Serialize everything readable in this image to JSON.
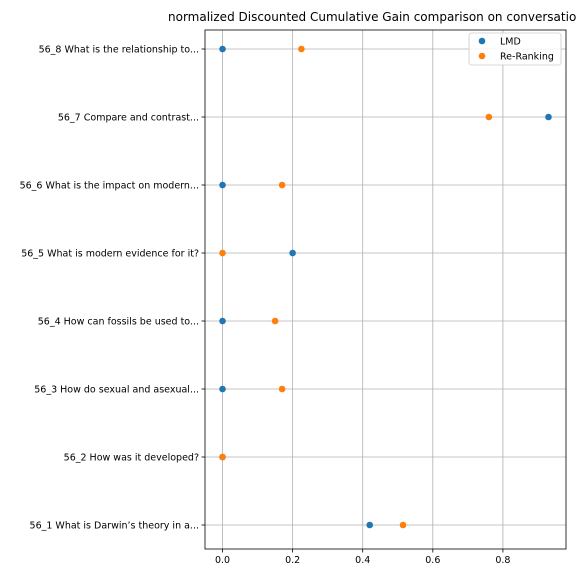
{
  "chart_data": {
    "type": "scatter",
    "title": "normalized Discounted Cumulative Gain comparison on conversation",
    "xlabel": "",
    "ylabel": "",
    "xlim": [
      -0.05,
      0.98
    ],
    "xticks": [
      "0.0",
      "0.2",
      "0.4",
      "0.6",
      "0.8"
    ],
    "grid": true,
    "legend_position": "top-right",
    "categories": [
      "56_1 What is Darwin’s theory in a...",
      "56_2 How was it developed?",
      "56_3 How do sexual and asexual...",
      "56_4 How can fossils be used to...",
      "56_5 What is modern evidence for it?",
      "56_6 What is the impact on modern...",
      "56_7 Compare and contrast...",
      "56_8 What is the relationship to..."
    ],
    "series": [
      {
        "name": "LMD",
        "color": "#1f77b4",
        "values": [
          0.42,
          0.0,
          0.0,
          0.0,
          0.2,
          0.0,
          0.93,
          0.0
        ]
      },
      {
        "name": "Re-Ranking",
        "color": "#ff7f0e",
        "values": [
          0.515,
          0.0,
          0.17,
          0.15,
          0.0,
          0.17,
          0.76,
          0.225
        ]
      }
    ]
  }
}
